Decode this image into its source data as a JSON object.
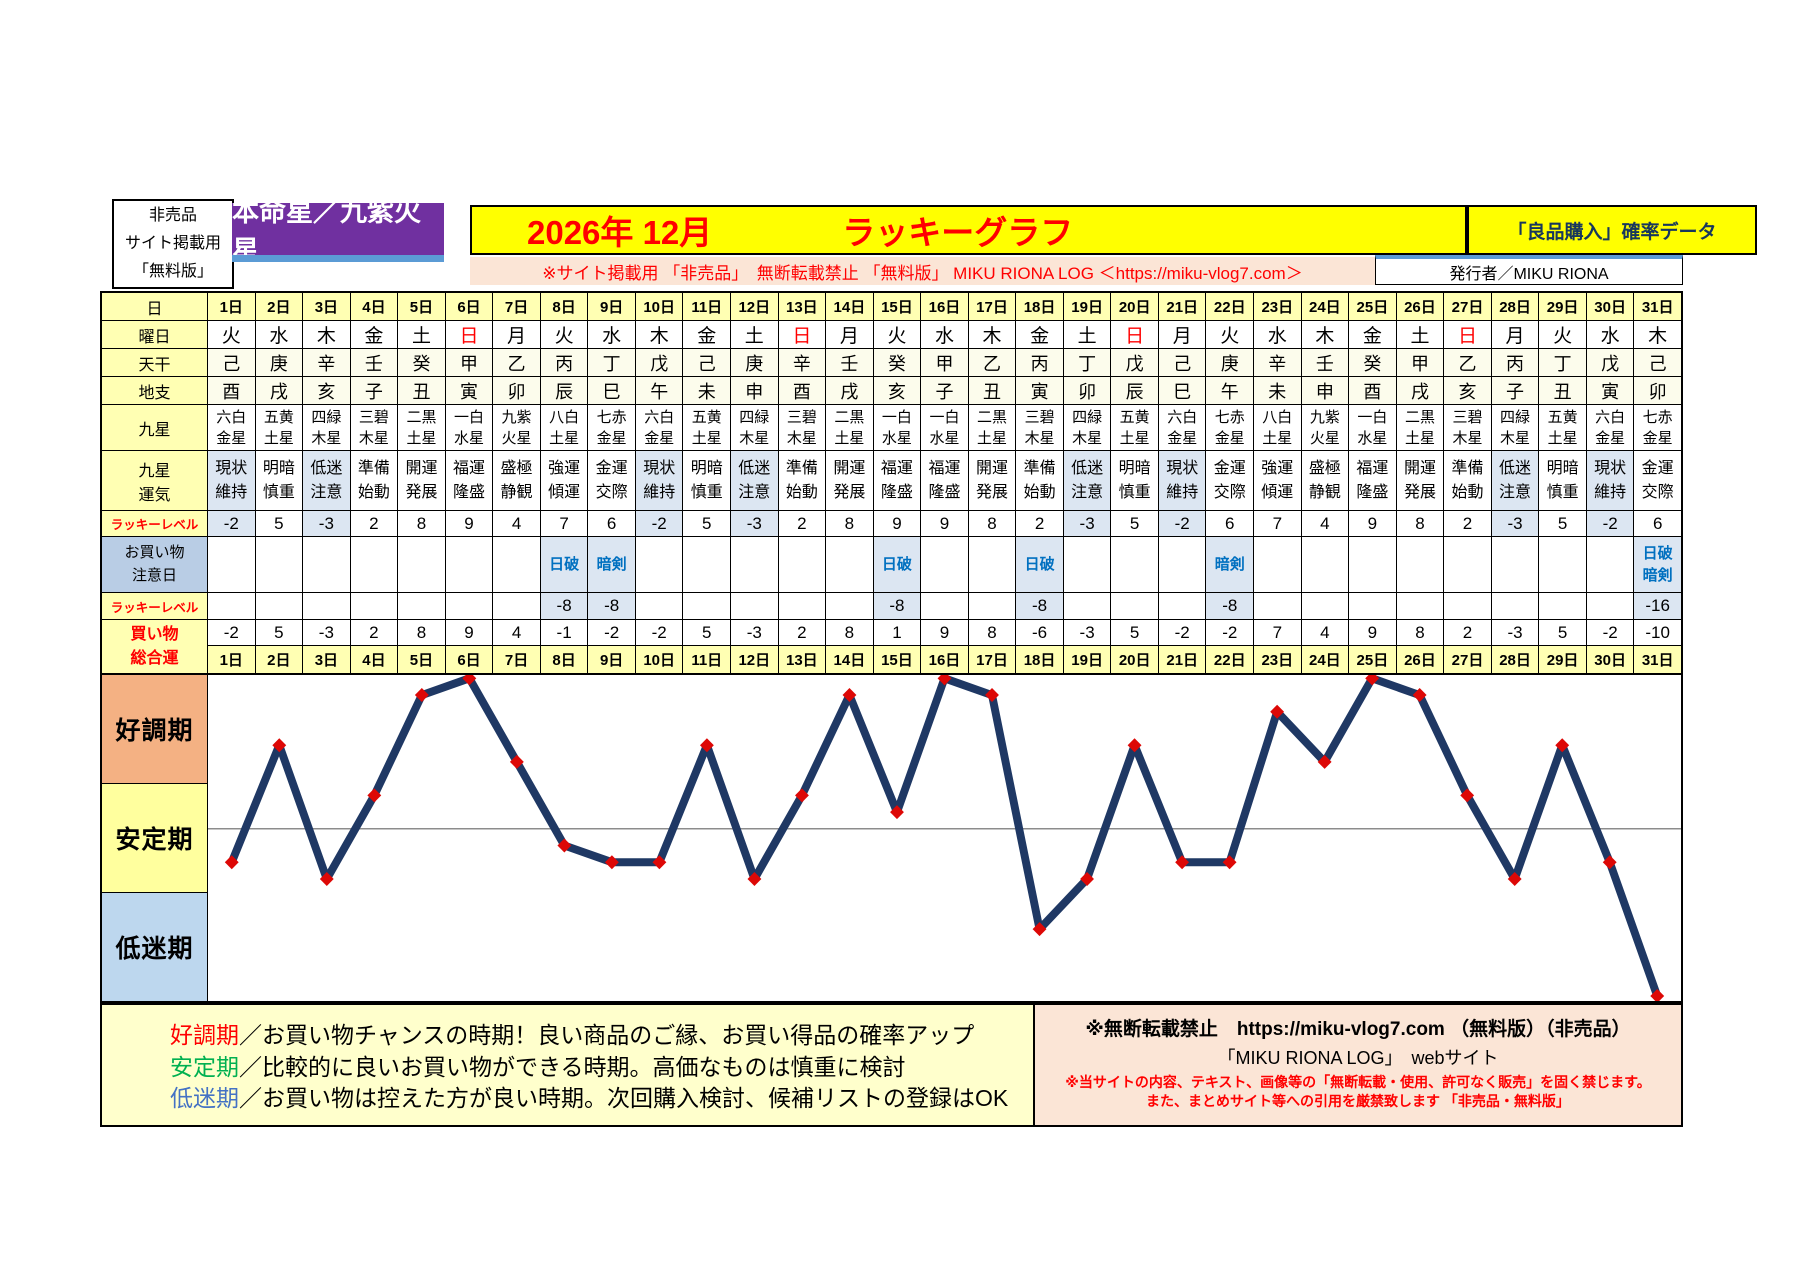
{
  "header": {
    "stamp_lines": [
      "非売品",
      "サイト掲載用",
      "「無料版」"
    ],
    "star_badge": "本命星／九紫火星",
    "title_month": "2026年 12月",
    "title_name": "ラッキーグラフ",
    "right_box": "「良品購入」確率データ",
    "subtitle": "※サイト掲載用 「非売品」　無断転載禁止 「無料版」 MIKU RIONA LOG ＜https://miku-vlog7.com＞",
    "publisher": "発行者／MIKU RIONA"
  },
  "table": {
    "labels": {
      "day": "日",
      "weekday": "曜日",
      "tenkan": "天干",
      "chishi": "地支",
      "kyusei": "九星",
      "unki": "九星\n運気",
      "lucky_level": "ラッキーレベル",
      "caution_day": "お買い物\n注意日",
      "total": "買い物\n総合運"
    },
    "days": [
      "1日",
      "2日",
      "3日",
      "4日",
      "5日",
      "6日",
      "7日",
      "8日",
      "9日",
      "10日",
      "11日",
      "12日",
      "13日",
      "14日",
      "15日",
      "16日",
      "17日",
      "18日",
      "19日",
      "20日",
      "21日",
      "22日",
      "23日",
      "24日",
      "25日",
      "26日",
      "27日",
      "28日",
      "29日",
      "30日",
      "31日"
    ],
    "weekdays": [
      "火",
      "水",
      "木",
      "金",
      "土",
      "日",
      "月",
      "火",
      "水",
      "木",
      "金",
      "土",
      "日",
      "月",
      "火",
      "水",
      "木",
      "金",
      "土",
      "日",
      "月",
      "火",
      "水",
      "木",
      "金",
      "土",
      "日",
      "月",
      "火",
      "水",
      "木"
    ],
    "tenkan": [
      "己",
      "庚",
      "辛",
      "壬",
      "癸",
      "甲",
      "乙",
      "丙",
      "丁",
      "戊",
      "己",
      "庚",
      "辛",
      "壬",
      "癸",
      "甲",
      "乙",
      "丙",
      "丁",
      "戊",
      "己",
      "庚",
      "辛",
      "壬",
      "癸",
      "甲",
      "乙",
      "丙",
      "丁",
      "戊",
      "己"
    ],
    "chishi": [
      "酉",
      "戌",
      "亥",
      "子",
      "丑",
      "寅",
      "卯",
      "辰",
      "巳",
      "午",
      "未",
      "申",
      "酉",
      "戌",
      "亥",
      "子",
      "丑",
      "寅",
      "卯",
      "辰",
      "巳",
      "午",
      "未",
      "申",
      "酉",
      "戌",
      "亥",
      "子",
      "丑",
      "寅",
      "卯"
    ],
    "kyusei": [
      "六白金星",
      "五黄土星",
      "四緑木星",
      "三碧木星",
      "二黒土星",
      "一白水星",
      "九紫火星",
      "八白土星",
      "七赤金星",
      "六白金星",
      "五黄土星",
      "四緑木星",
      "三碧木星",
      "二黒土星",
      "一白水星",
      "一白水星",
      "二黒土星",
      "三碧木星",
      "四緑木星",
      "五黄土星",
      "六白金星",
      "七赤金星",
      "八白土星",
      "九紫火星",
      "一白水星",
      "二黒土星",
      "三碧木星",
      "四緑木星",
      "五黄土星",
      "六白金星",
      "七赤金星"
    ],
    "unki": [
      "現状維持",
      "明暗慎重",
      "低迷注意",
      "準備始動",
      "開運発展",
      "福運隆盛",
      "盛極静観",
      "強運傾運",
      "金運交際",
      "現状維持",
      "明暗慎重",
      "低迷注意",
      "準備始動",
      "開運発展",
      "福運隆盛",
      "福運隆盛",
      "開運発展",
      "準備始動",
      "低迷注意",
      "明暗慎重",
      "現状維持",
      "金運交際",
      "強運傾運",
      "盛極静観",
      "福運隆盛",
      "開運発展",
      "準備始動",
      "低迷注意",
      "明暗慎重",
      "現状維持",
      "金運交際"
    ],
    "lucky_level": [
      -2,
      5,
      -3,
      2,
      8,
      9,
      4,
      7,
      6,
      -2,
      5,
      -3,
      2,
      8,
      9,
      9,
      8,
      2,
      -3,
      5,
      -2,
      6,
      7,
      4,
      9,
      8,
      2,
      -3,
      5,
      -2,
      6
    ],
    "caution_days": [
      "",
      "",
      "",
      "",
      "",
      "",
      "",
      "日破",
      "暗剣",
      "",
      "",
      "",
      "",
      "",
      "日破",
      "",
      "",
      "日破",
      "",
      "",
      "",
      "暗剣",
      "",
      "",
      "",
      "",
      "",
      "",
      "",
      "",
      "日破暗剣"
    ],
    "caution_levels": [
      "",
      "",
      "",
      "",
      "",
      "",
      "",
      -8,
      -8,
      "",
      "",
      "",
      "",
      "",
      -8,
      "",
      "",
      -8,
      "",
      "",
      "",
      -8,
      "",
      "",
      "",
      "",
      "",
      "",
      "",
      "",
      -16
    ],
    "total": [
      -2,
      5,
      -3,
      2,
      8,
      9,
      4,
      -1,
      -2,
      -2,
      5,
      -3,
      2,
      8,
      1,
      9,
      8,
      -6,
      -3,
      5,
      -2,
      -2,
      7,
      4,
      9,
      8,
      2,
      -3,
      5,
      -2,
      -10
    ]
  },
  "bands": [
    {
      "label": "好調期",
      "color": "#f4b183"
    },
    {
      "label": "安定期",
      "color": "#ffff9e"
    },
    {
      "label": "低迷期",
      "color": "#bdd7ee"
    }
  ],
  "chart_data": {
    "type": "line",
    "title": "2026年12月 ラッキーグラフ（買い物総合運）",
    "x": [
      1,
      2,
      3,
      4,
      5,
      6,
      7,
      8,
      9,
      10,
      11,
      12,
      13,
      14,
      15,
      16,
      17,
      18,
      19,
      20,
      21,
      22,
      23,
      24,
      25,
      26,
      27,
      28,
      29,
      30,
      31
    ],
    "series": [
      {
        "name": "買い物総合運",
        "values": [
          -2,
          5,
          -3,
          2,
          8,
          9,
          4,
          -1,
          -2,
          -2,
          5,
          -3,
          2,
          8,
          1,
          9,
          8,
          -6,
          -3,
          5,
          -2,
          -2,
          7,
          4,
          9,
          8,
          2,
          -3,
          5,
          -2,
          -10
        ]
      }
    ],
    "ylim": [
      -10.3,
      9.2
    ],
    "zero_line": 0,
    "grid": false,
    "legend_position": "none",
    "line_color": "#1f3864",
    "marker": "diamond",
    "marker_color": "#dd0806",
    "bands": [
      "好調期",
      "安定期",
      "低迷期"
    ]
  },
  "legend": [
    {
      "term": "好調期",
      "color": "#ff0000",
      "desc": "／お買い物チャンスの時期！良い商品のご縁、お買い得品の確率アップ"
    },
    {
      "term": "安定期",
      "color": "#00b050",
      "desc": "／比較的に良いお買い物ができる時期。高価なものは慎重に検討"
    },
    {
      "term": "低迷期",
      "color": "#4472c4",
      "desc": "／お買い物は控えた方が良い時期。次回購入検討、候補リストの登録はOK"
    }
  ],
  "footer_right": {
    "line1": "※無断転載禁止　https://miku-vlog7.com （無料版）（非売品）",
    "line2": "「MIKU RIONA LOG」　webサイト",
    "line3": "※当サイトの内容、テキスト、画像等の「無断転載・使用、許可なく販売」を固く禁じます。",
    "line4": "また、まとめサイト等への引用を厳禁致します 「非売品・無料版」"
  }
}
